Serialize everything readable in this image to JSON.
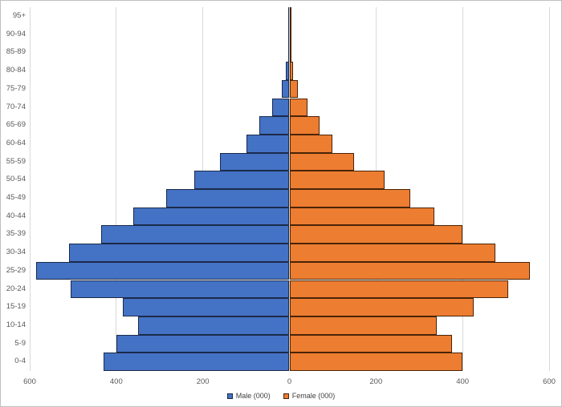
{
  "chart_data": {
    "type": "bar",
    "subtype": "population_pyramid",
    "orientation": "horizontal",
    "title": "",
    "xlabel": "",
    "ylabel": "",
    "categories_top_to_bottom": [
      "95+",
      "90-94",
      "85-89",
      "80-84",
      "75-79",
      "70-74",
      "65-69",
      "60-64",
      "55-59",
      "50-54",
      "45-49",
      "40-44",
      "35-39",
      "30-34",
      "25-29",
      "20-24",
      "15-19",
      "10-14",
      "5-9",
      "0-4"
    ],
    "series": [
      {
        "name": "Male (000)",
        "side": "left",
        "color": "#4472C4",
        "border_color": "#1B2A4A",
        "values": [
          1,
          2,
          3,
          8,
          18,
          40,
          70,
          100,
          160,
          220,
          285,
          360,
          435,
          510,
          585,
          505,
          385,
          350,
          400,
          430
        ]
      },
      {
        "name": "Female (000)",
        "side": "right",
        "color": "#ED7D31",
        "border_color": "#4A2408",
        "values": [
          1,
          3,
          5,
          8,
          19,
          41,
          70,
          100,
          150,
          220,
          280,
          335,
          400,
          475,
          555,
          505,
          425,
          340,
          375,
          400
        ]
      }
    ],
    "x_axis": {
      "min": -600,
      "max": 600,
      "tick_step": 200,
      "tick_labels": [
        "600",
        "400",
        "200",
        "0",
        "200",
        "400",
        "600"
      ],
      "tick_label_color": "#595959"
    },
    "y_axis": {
      "tick_label_color": "#595959"
    },
    "legend": {
      "position": "bottom",
      "entries": [
        "Male (000)",
        "Female (000)"
      ]
    },
    "grid": {
      "vertical_gridlines": true,
      "gridline_color": "#D9D9D9"
    },
    "background_color": "#FFFFFF",
    "frame_border_color": "#BFBFBF"
  }
}
